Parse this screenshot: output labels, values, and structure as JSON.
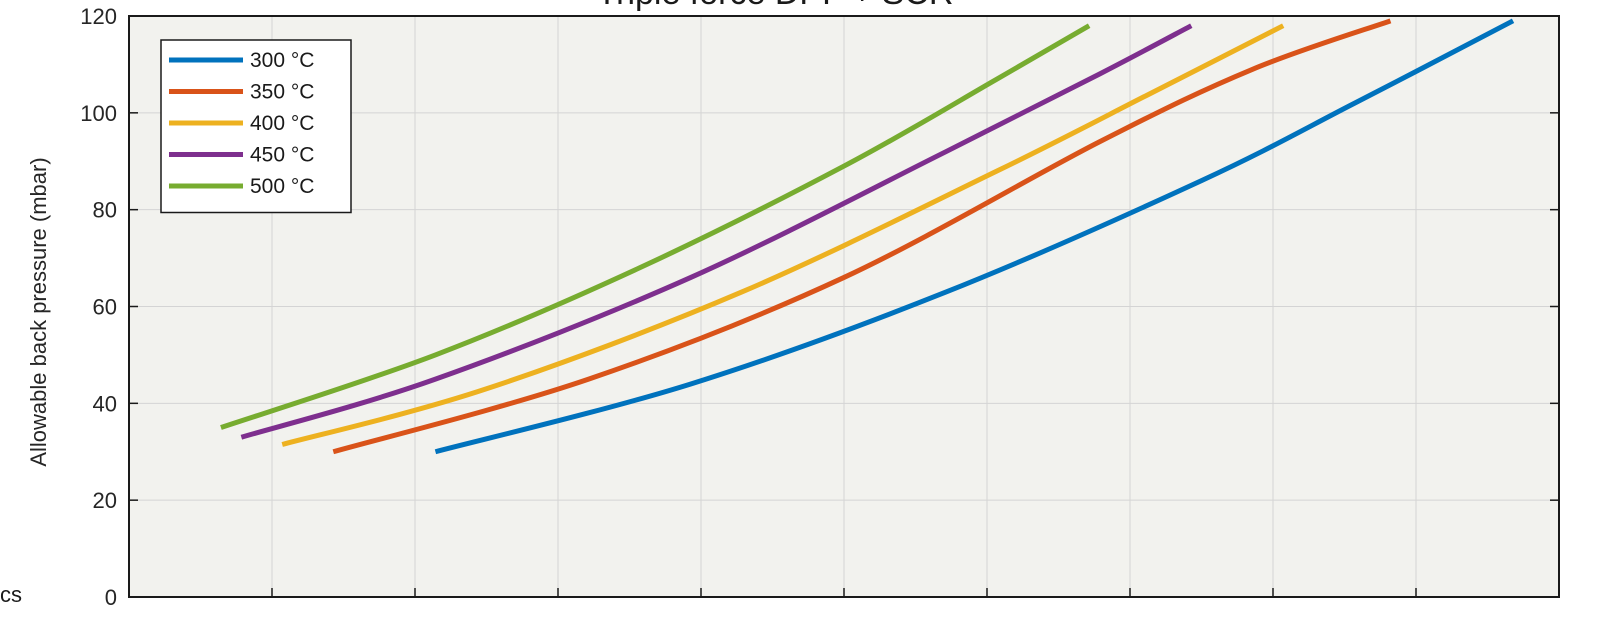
{
  "title": "Triple force DPF + SCR",
  "side_fragment": "cs",
  "chart_data": {
    "type": "line",
    "title": "Triple force DPF + SCR",
    "xlabel": "",
    "ylabel": "Allowable back pressure (mbar)",
    "ylim": [
      0,
      120
    ],
    "yticks": [
      0,
      20,
      40,
      60,
      80,
      100,
      120
    ],
    "xticks_count": 9,
    "grid": true,
    "legend_position": "top-left",
    "colors": {
      "plot_background": "#f2f2ee",
      "grid": "#d4d4d4"
    },
    "series": [
      {
        "name": "300 °C",
        "color": "#0072bd",
        "x": [
          1.0,
          3.5,
          6.0,
          8.5,
          10.0,
          11.55
        ],
        "y": [
          30,
          44,
          63,
          86,
          102,
          119
        ]
      },
      {
        "name": "350 °C",
        "color": "#d95319",
        "x": [
          0.0,
          2.5,
          5.0,
          7.5,
          9.0,
          10.35
        ],
        "y": [
          30,
          45,
          66,
          94,
          109,
          119
        ]
      },
      {
        "name": "400 °C",
        "color": "#edb120",
        "x": [
          -0.5,
          1.5,
          4.0,
          6.5,
          8.0,
          9.3
        ],
        "y": [
          31.5,
          43,
          63,
          88,
          104,
          118
        ]
      },
      {
        "name": "450 °C",
        "color": "#7e2f8e",
        "x": [
          -0.9,
          1.0,
          3.5,
          6.0,
          7.5,
          8.4
        ],
        "y": [
          33,
          45,
          66,
          92,
          108,
          118
        ]
      },
      {
        "name": "500 °C",
        "color": "#77ac30",
        "x": [
          -1.1,
          1.0,
          3.0,
          5.0,
          6.5,
          7.4
        ],
        "y": [
          35,
          50,
          68,
          89,
          107,
          118
        ]
      }
    ]
  }
}
